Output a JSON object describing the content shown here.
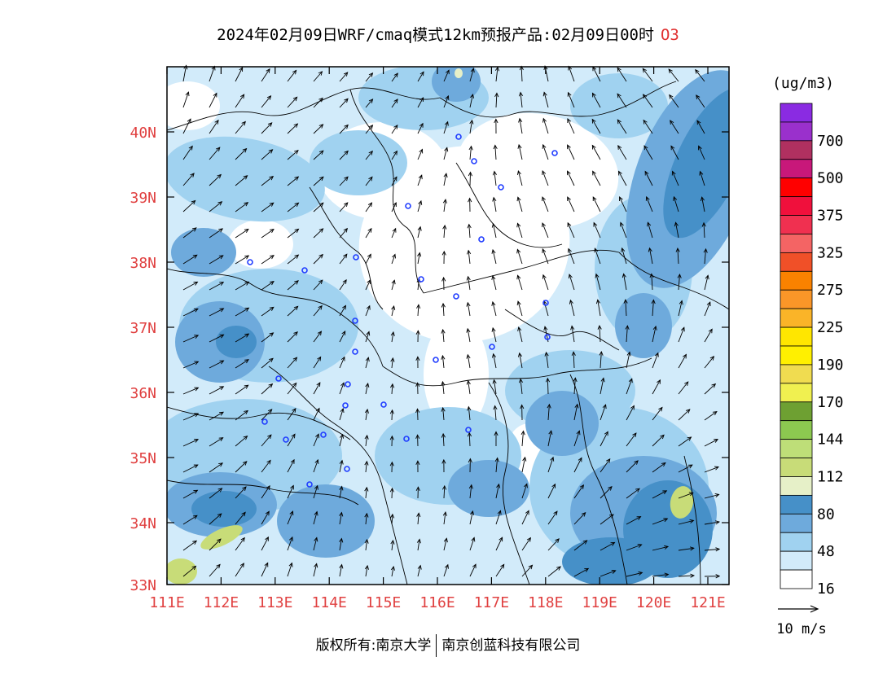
{
  "title": {
    "main": "2024年02月09日WRF/cmaq模式12km预报产品:02月09日00时",
    "pollutant": "O3"
  },
  "map": {
    "lat_labels": [
      "40N",
      "39N",
      "38N",
      "37N",
      "36N",
      "35N",
      "34N",
      "33N"
    ],
    "lon_labels": [
      "111E",
      "112E",
      "113E",
      "114E",
      "115E",
      "116E",
      "117E",
      "118E",
      "119E",
      "120E",
      "121E"
    ],
    "axis_label_color": "#e04040"
  },
  "legend": {
    "unit": "(ug/m3)",
    "levels": [
      {
        "label": "",
        "color": "#8a2be2"
      },
      {
        "label": "700",
        "color": "#9a30cc"
      },
      {
        "label": "",
        "color": "#b03060"
      },
      {
        "label": "500",
        "color": "#c8187a"
      },
      {
        "label": "",
        "color": "#ff0000"
      },
      {
        "label": "375",
        "color": "#f0103c"
      },
      {
        "label": "",
        "color": "#f03050"
      },
      {
        "label": "325",
        "color": "#f46464"
      },
      {
        "label": "",
        "color": "#f05028"
      },
      {
        "label": "275",
        "color": "#fa8200"
      },
      {
        "label": "",
        "color": "#fa9628"
      },
      {
        "label": "225",
        "color": "#fab428"
      },
      {
        "label": "",
        "color": "#ffe600"
      },
      {
        "label": "190",
        "color": "#fff000"
      },
      {
        "label": "",
        "color": "#f0dc50"
      },
      {
        "label": "170",
        "color": "#f0f050"
      },
      {
        "label": "",
        "color": "#6ea032"
      },
      {
        "label": "144",
        "color": "#8cc850"
      },
      {
        "label": "",
        "color": "#bede78"
      },
      {
        "label": "112",
        "color": "#c8dc78"
      },
      {
        "label": "",
        "color": "#e6f0c8"
      },
      {
        "label": "80",
        "color": "#4690c8"
      },
      {
        "label": "",
        "color": "#6eaadc"
      },
      {
        "label": "48",
        "color": "#a0d2f0"
      },
      {
        "label": "",
        "color": "#d2ebfa"
      },
      {
        "label": "16",
        "color": "#ffffff"
      }
    ],
    "wind_ref": "10 m/s"
  },
  "footer": {
    "left": "版权所有:南京大学",
    "right": "南京创蓝科技有限公司"
  }
}
